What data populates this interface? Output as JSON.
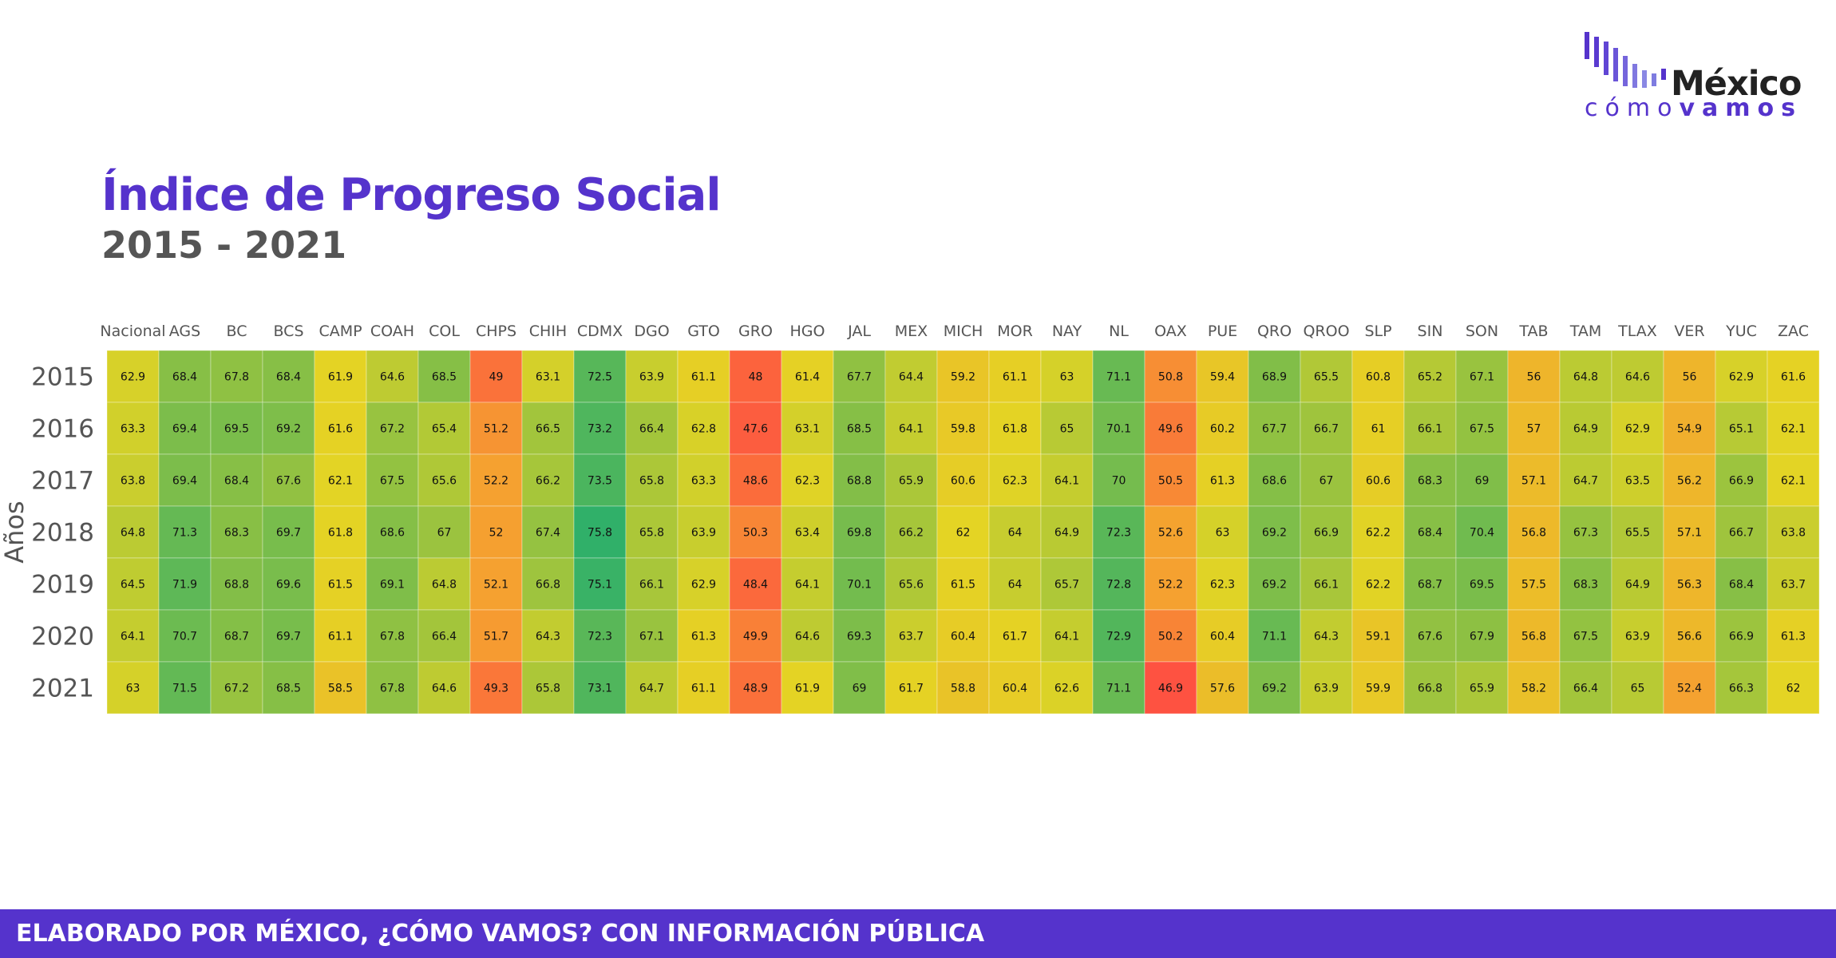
{
  "logo": {
    "word1": "México",
    "word2_light": "cómo",
    "word2_bold": "vamos",
    "bar_color": "#5533cc"
  },
  "header": {
    "title": "Índice de Progreso Social",
    "subtitle": "2015 - 2021"
  },
  "footer": {
    "text": "ELABORADO POR MÉXICO, ¿CÓMO VAMOS? CON INFORMACIÓN PÚBLICA"
  },
  "colors": {
    "brand": "#5533cc",
    "scale": [
      "#ff4444",
      "#f5a030",
      "#e4d424",
      "#8cc044",
      "#2eb06a"
    ]
  },
  "chart_data": {
    "type": "heatmap",
    "ylabel": "Años",
    "columns": [
      "Nacional",
      "AGS",
      "BC",
      "BCS",
      "CAMP",
      "COAH",
      "COL",
      "CHPS",
      "CHIH",
      "CDMX",
      "DGO",
      "GTO",
      "GRO",
      "HGO",
      "JAL",
      "MEX",
      "MICH",
      "MOR",
      "NAY",
      "NL",
      "OAX",
      "PUE",
      "QRO",
      "QROO",
      "SLP",
      "SIN",
      "SON",
      "TAB",
      "TAM",
      "TLAX",
      "VER",
      "YUC",
      "ZAC"
    ],
    "rows": [
      "2015",
      "2016",
      "2017",
      "2018",
      "2019",
      "2020",
      "2021"
    ],
    "values": [
      [
        62.9,
        68.4,
        67.8,
        68.4,
        61.9,
        64.6,
        68.5,
        49,
        63.1,
        72.5,
        63.9,
        61.1,
        48,
        61.4,
        67.7,
        64.4,
        59.2,
        61.1,
        63,
        71.1,
        50.8,
        59.4,
        68.9,
        65.5,
        60.8,
        65.2,
        67.1,
        56,
        64.8,
        64.6,
        56,
        62.9,
        61.6
      ],
      [
        63.3,
        69.4,
        69.5,
        69.2,
        61.6,
        67.2,
        65.4,
        51.2,
        66.5,
        73.2,
        66.4,
        62.8,
        47.6,
        63.1,
        68.5,
        64.1,
        59.8,
        61.8,
        65,
        70.1,
        49.6,
        60.2,
        67.7,
        66.7,
        61,
        66.1,
        67.5,
        57,
        64.9,
        62.9,
        54.9,
        65.1,
        62.1
      ],
      [
        63.8,
        69.4,
        68.4,
        67.6,
        62.1,
        67.5,
        65.6,
        52.2,
        66.2,
        73.5,
        65.8,
        63.3,
        48.6,
        62.3,
        68.8,
        65.9,
        60.6,
        62.3,
        64.1,
        70,
        50.5,
        61.3,
        68.6,
        67,
        60.6,
        68.3,
        69,
        57.1,
        64.7,
        63.5,
        56.2,
        66.9,
        62.1
      ],
      [
        64.8,
        71.3,
        68.3,
        69.7,
        61.8,
        68.6,
        67,
        52,
        67.4,
        75.8,
        65.8,
        63.9,
        50.3,
        63.4,
        69.8,
        66.2,
        62,
        64,
        64.9,
        72.3,
        52.6,
        63,
        69.2,
        66.9,
        62.2,
        68.4,
        70.4,
        56.8,
        67.3,
        65.5,
        57.1,
        66.7,
        63.8
      ],
      [
        64.5,
        71.9,
        68.8,
        69.6,
        61.5,
        69.1,
        64.8,
        52.1,
        66.8,
        75.1,
        66.1,
        62.9,
        48.4,
        64.1,
        70.1,
        65.6,
        61.5,
        64,
        65.7,
        72.8,
        52.2,
        62.3,
        69.2,
        66.1,
        62.2,
        68.7,
        69.5,
        57.5,
        68.3,
        64.9,
        56.3,
        68.4,
        63.7
      ],
      [
        64.1,
        70.7,
        68.7,
        69.7,
        61.1,
        67.8,
        66.4,
        51.7,
        64.3,
        72.3,
        67.1,
        61.3,
        49.9,
        64.6,
        69.3,
        63.7,
        60.4,
        61.7,
        64.1,
        72.9,
        50.2,
        60.4,
        71.1,
        64.3,
        59.1,
        67.6,
        67.9,
        56.8,
        67.5,
        63.9,
        56.6,
        66.9,
        61.3
      ],
      [
        63,
        71.5,
        67.2,
        68.5,
        58.5,
        67.8,
        64.6,
        49.3,
        65.8,
        73.1,
        64.7,
        61.1,
        48.9,
        61.9,
        69,
        61.7,
        58.8,
        60.4,
        62.6,
        71.1,
        46.9,
        57.6,
        69.2,
        63.9,
        59.9,
        66.8,
        65.9,
        58.2,
        66.4,
        65,
        52.4,
        66.3,
        62
      ]
    ],
    "legend": "none"
  }
}
